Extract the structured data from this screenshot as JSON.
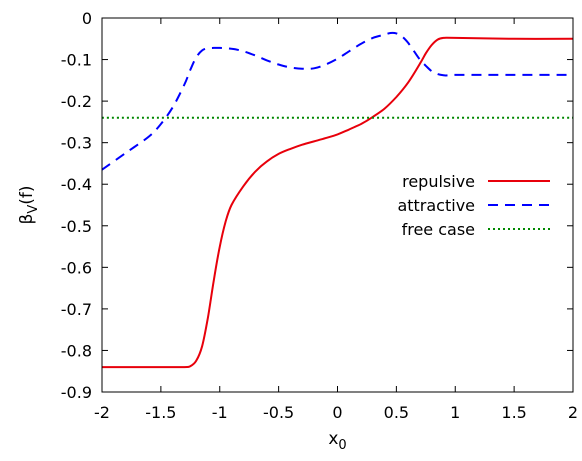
{
  "chart_data": {
    "type": "line",
    "xlabel": "x",
    "xlabel_sub": "0",
    "ylabel_main": "β",
    "ylabel_sub": "V",
    "ylabel_tail": "(f)",
    "xlim": [
      -2,
      2
    ],
    "ylim": [
      -0.9,
      0
    ],
    "xticks": [
      -2,
      -1.5,
      -1,
      -0.5,
      0,
      0.5,
      1,
      1.5,
      2
    ],
    "xtick_labels": [
      "-2",
      "-1.5",
      "-1",
      "-0.5",
      "0",
      "0.5",
      "1",
      "1.5",
      "2"
    ],
    "yticks": [
      0,
      -0.1,
      -0.2,
      -0.3,
      -0.4,
      -0.5,
      -0.6,
      -0.7,
      -0.8,
      -0.9
    ],
    "ytick_labels": [
      "0",
      "-0.1",
      "-0.2",
      "-0.3",
      "-0.4",
      "-0.5",
      "-0.6",
      "-0.7",
      "-0.8",
      "-0.9"
    ],
    "legend_position": "right",
    "series": [
      {
        "name": "repulsive",
        "color": "#e8000b",
        "dash": "solid",
        "x": [
          -2,
          -1.5,
          -1.3,
          -1.25,
          -1.2,
          -1.15,
          -1.1,
          -1.05,
          -1.0,
          -0.95,
          -0.9,
          -0.8,
          -0.7,
          -0.6,
          -0.5,
          -0.4,
          -0.3,
          -0.2,
          -0.1,
          0,
          0.1,
          0.2,
          0.3,
          0.4,
          0.5,
          0.6,
          0.7,
          0.75,
          0.8,
          0.85,
          0.9,
          1.0,
          1.5,
          2
        ],
        "y": [
          -0.84,
          -0.84,
          -0.84,
          -0.838,
          -0.825,
          -0.79,
          -0.72,
          -0.63,
          -0.55,
          -0.49,
          -0.45,
          -0.405,
          -0.37,
          -0.345,
          -0.327,
          -0.315,
          -0.305,
          -0.297,
          -0.289,
          -0.28,
          -0.268,
          -0.255,
          -0.238,
          -0.218,
          -0.19,
          -0.155,
          -0.11,
          -0.085,
          -0.065,
          -0.052,
          -0.048,
          -0.048,
          -0.05,
          -0.05
        ]
      },
      {
        "name": "attractive",
        "color": "#0000ff",
        "dash": "dashed",
        "x": [
          -2,
          -1.8,
          -1.6,
          -1.5,
          -1.4,
          -1.3,
          -1.25,
          -1.2,
          -1.15,
          -1.1,
          -1.05,
          -1.0,
          -0.9,
          -0.8,
          -0.7,
          -0.6,
          -0.5,
          -0.4,
          -0.3,
          -0.2,
          -0.1,
          0,
          0.1,
          0.2,
          0.3,
          0.4,
          0.45,
          0.5,
          0.55,
          0.6,
          0.65,
          0.7,
          0.75,
          0.8,
          0.85,
          0.9,
          0.95,
          1.0,
          1.2,
          1.5,
          2
        ],
        "y": [
          -0.365,
          -0.325,
          -0.285,
          -0.255,
          -0.215,
          -0.16,
          -0.125,
          -0.095,
          -0.078,
          -0.073,
          -0.072,
          -0.072,
          -0.074,
          -0.08,
          -0.09,
          -0.102,
          -0.112,
          -0.119,
          -0.122,
          -0.121,
          -0.112,
          -0.098,
          -0.08,
          -0.062,
          -0.048,
          -0.04,
          -0.036,
          -0.037,
          -0.045,
          -0.06,
          -0.08,
          -0.1,
          -0.115,
          -0.128,
          -0.135,
          -0.138,
          -0.138,
          -0.137,
          -0.137,
          -0.137,
          -0.137
        ]
      },
      {
        "name": "free case",
        "color": "#008800",
        "dash": "dotted",
        "x": [
          -2,
          2
        ],
        "y": [
          -0.24,
          -0.24
        ]
      }
    ]
  }
}
